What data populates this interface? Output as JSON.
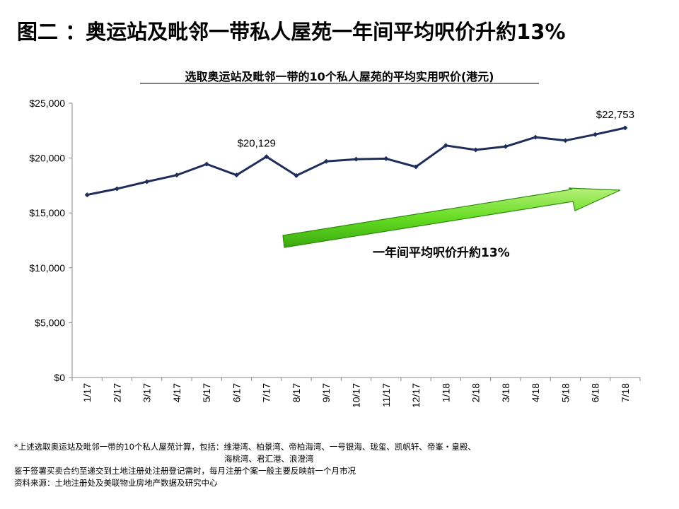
{
  "title": "图二 ：奥运站及毗邻一带私人屋苑一年间平均呎价升約13%",
  "chart_data": {
    "type": "line",
    "title": "选取奥运站及毗邻一带的10个私人屋苑的平均实用呎价(港元)",
    "categories": [
      "1/17",
      "2/17",
      "3/17",
      "4/17",
      "5/17",
      "6/17",
      "7/17",
      "8/17",
      "9/17",
      "10/17",
      "11/17",
      "12/17",
      "1/18",
      "2/18",
      "3/18",
      "4/18",
      "5/18",
      "6/18",
      "7/18"
    ],
    "series": [
      {
        "values": [
          16650,
          17200,
          17850,
          18450,
          19450,
          18450,
          20129,
          18400,
          19700,
          19900,
          19950,
          19200,
          21150,
          20750,
          21050,
          21900,
          21600,
          22150,
          22753
        ]
      }
    ],
    "ylim": [
      0,
      25000
    ],
    "yticks": [
      0,
      5000,
      10000,
      15000,
      20000,
      25000
    ],
    "ytick_labels": [
      "$0",
      "$5,000",
      "$10,000",
      "$15,000",
      "$20,000",
      "$25,000"
    ],
    "data_labels": [
      {
        "index": 6,
        "text": "$20,129"
      },
      {
        "index": 18,
        "text": "$22,753"
      }
    ],
    "annotation": "一年间平均呎价升約13%",
    "line_color": "#1f2d5a",
    "arrow_color": "#66dd22",
    "grid": false
  },
  "footnotes": {
    "line1": "*上述选取奥运站及毗邻一带的10个私人屋苑计算，包括：维港湾、柏景湾、帝柏海湾、一号银海、珑玺、凯帆轩、帝峯・皇殿、",
    "line2": "海桃湾、君汇港、浪澄湾",
    "line3": "鉴于签署买卖合约至递交到土地注册处注册登记需时，每月注册个案一般主要反映前一个月市况",
    "line4": "资料来源：土地注册处及美联物业房地产数据及研究中心"
  }
}
